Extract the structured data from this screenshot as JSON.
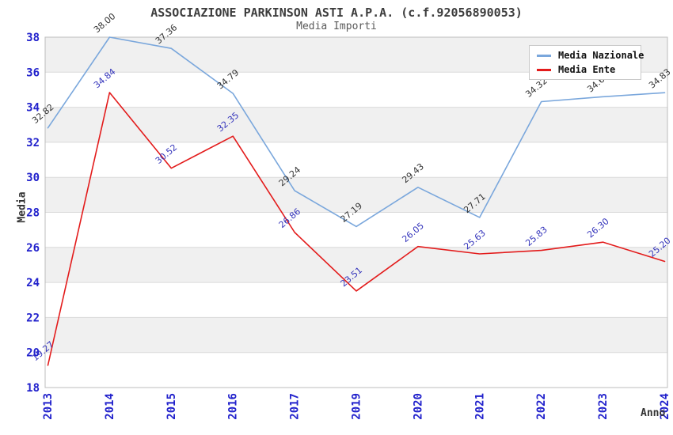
{
  "chart_data": {
    "type": "line",
    "title": "ASSOCIAZIONE PARKINSON ASTI A.P.A. (c.f.92056890053)",
    "subtitle": "Media Importi",
    "xlabel": "Anno",
    "ylabel": "Media",
    "categories": [
      "2013",
      "2014",
      "2015",
      "2016",
      "2017",
      "2019",
      "2020",
      "2021",
      "2022",
      "2023",
      "2024"
    ],
    "series": [
      {
        "name": "Media Nazionale",
        "color": "#7aa7dc",
        "label_color": "#333333",
        "values": [
          32.82,
          38.0,
          37.36,
          34.79,
          29.24,
          27.19,
          29.43,
          27.71,
          34.32,
          34.6,
          34.83
        ]
      },
      {
        "name": "Media Ente",
        "color": "#e31b1b",
        "label_color": "#3434bb",
        "values": [
          19.27,
          34.84,
          30.52,
          32.35,
          26.86,
          23.51,
          26.05,
          25.63,
          25.83,
          26.3,
          25.2
        ]
      }
    ],
    "ylim": [
      18,
      38
    ],
    "ytick_step": 2,
    "yticks": [
      18,
      20,
      22,
      24,
      26,
      28,
      30,
      32,
      34,
      36,
      38
    ],
    "grid": true,
    "alternating_bands": true,
    "legend_position": "top-right",
    "value_label_decimals": 2,
    "colors": {
      "background": "#ffffff",
      "band": "#f0f0f0",
      "grid": "#dadada",
      "plot_border": "#bdbdbd",
      "tick_label": "#2222cc",
      "title": "#3d3d3d",
      "subtitle": "#5a5a5a",
      "axis_title": "#333333",
      "legend_border": "#c9c9c9",
      "legend_text": "#111111"
    }
  }
}
